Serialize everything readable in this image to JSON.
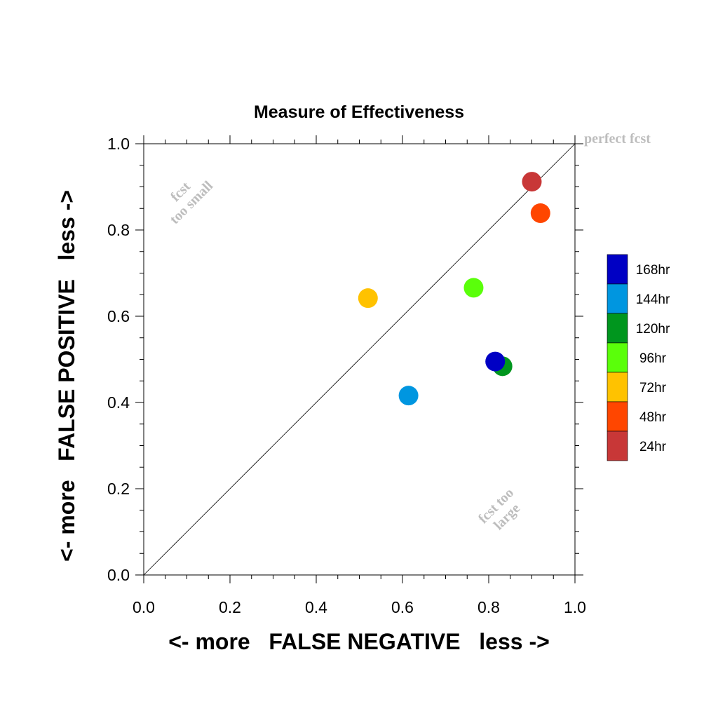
{
  "chart_data": {
    "type": "scatter",
    "title": "Measure of Effectiveness",
    "xlabel": "<- more   FALSE NEGATIVE   less ->",
    "ylabel": "<- more   FALSE POSITIVE   less ->",
    "xlim": [
      0.0,
      1.0
    ],
    "ylim": [
      0.0,
      1.0
    ],
    "xticks": [
      "0.0",
      "0.2",
      "0.4",
      "0.6",
      "0.8",
      "1.0"
    ],
    "yticks": [
      "0.0",
      "0.2",
      "0.4",
      "0.6",
      "0.8",
      "1.0"
    ],
    "grid": false,
    "reference_line": {
      "from": [
        0,
        0
      ],
      "to": [
        1,
        1
      ]
    },
    "legend_position": "right",
    "annotations": {
      "perfect": "perfect fcst",
      "too_small_line1": "fcst",
      "too_small_line2": "too small",
      "too_large_line1": "fcst too",
      "too_large_line2": "large"
    },
    "series": [
      {
        "name": "168hr",
        "color": "#0000c4",
        "x": 0.815,
        "y": 0.495
      },
      {
        "name": "144hr",
        "color": "#0096e0",
        "x": 0.614,
        "y": 0.416
      },
      {
        "name": "120hr",
        "color": "#00961e",
        "x": 0.832,
        "y": 0.484
      },
      {
        "name": "96hr",
        "color": "#5aff0a",
        "x": 0.765,
        "y": 0.666
      },
      {
        "name": "72hr",
        "color": "#ffc200",
        "x": 0.52,
        "y": 0.642
      },
      {
        "name": "48hr",
        "color": "#ff4600",
        "x": 0.92,
        "y": 0.839
      },
      {
        "name": "24hr",
        "color": "#c83737",
        "x": 0.9,
        "y": 0.912
      }
    ]
  }
}
